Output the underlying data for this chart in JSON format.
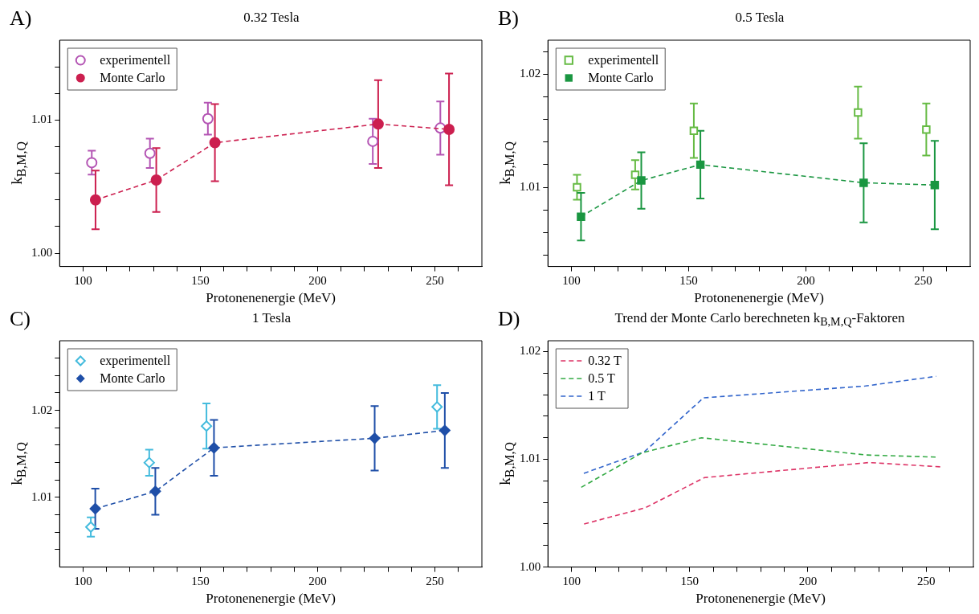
{
  "chart_data": [
    {
      "type": "scatter",
      "title": "0.32 Tesla",
      "xlabel": "Protonenenergie (MeV)",
      "ylabel": "k$_{B,M,Q}$",
      "annotations": [
        "A)"
      ],
      "marker": "circle",
      "line_style": "dashed",
      "legend": "top left",
      "xlim": [
        90,
        270
      ],
      "ylim": [
        0.999,
        1.016
      ],
      "xticks": [
        100,
        {
          "value": 110,
          "label": null
        },
        {
          "value": 120,
          "label": null
        },
        {
          "value": 130,
          "label": null
        },
        {
          "value": 140,
          "label": null
        },
        150,
        {
          "value": 160,
          "label": null
        },
        {
          "value": 170,
          "label": null
        },
        {
          "value": 180,
          "label": null
        },
        {
          "value": 190,
          "label": null
        },
        200,
        {
          "value": 210,
          "label": null
        },
        {
          "value": 220,
          "label": null
        },
        {
          "value": 230,
          "label": null
        },
        {
          "value": 240,
          "label": null
        },
        250,
        {
          "value": 260,
          "label": null
        }
      ],
      "yticks": [
        {
          "value": 1,
          "label": "1.00"
        },
        {
          "value": 1.002,
          "label": null
        },
        {
          "value": 1.004,
          "label": null
        },
        {
          "value": 1.006,
          "label": null
        },
        {
          "value": 1.008,
          "label": null
        },
        {
          "value": 1.01,
          "label": "1.01"
        },
        {
          "value": 1.012,
          "label": null
        },
        {
          "value": 1.014,
          "label": null
        }
      ],
      "series": [
        {
          "name": "experimentell",
          "color": "#b455b4",
          "x": [
            103.7,
            128.5,
            153.2,
            223.5,
            252.3
          ],
          "values": [
            1.0068,
            1.0075,
            1.0101,
            1.0084,
            1.0094
          ],
          "errors": [
            0.0009,
            0.0011,
            0.0012,
            0.0017,
            0.002
          ]
        },
        {
          "name": "Monte Carlo",
          "type": "line",
          "color": "#cc1f4f",
          "x": [
            105.3,
            131.2,
            156.2,
            225.8,
            256
          ],
          "values": [
            1.004,
            1.0055,
            1.0083,
            1.0097,
            1.0093
          ],
          "errors": [
            0.0022,
            0.0024,
            0.0029,
            0.0033,
            0.0042
          ]
        }
      ]
    },
    {
      "type": "scatter",
      "title": "0.5 Tesla",
      "xlabel": "Protonenenergie (MeV)",
      "ylabel": "k$_{B,M,Q}$",
      "annotations": [
        "B)"
      ],
      "marker": "square",
      "line_style": "dashed",
      "legend": "top left",
      "xlim": [
        90,
        270
      ],
      "ylim": [
        1.003,
        1.023
      ],
      "xticks": [
        100,
        {
          "value": 110,
          "label": null
        },
        {
          "value": 120,
          "label": null
        },
        {
          "value": 130,
          "label": null
        },
        {
          "value": 140,
          "label": null
        },
        150,
        {
          "value": 160,
          "label": null
        },
        {
          "value": 170,
          "label": null
        },
        {
          "value": 180,
          "label": null
        },
        {
          "value": 190,
          "label": null
        },
        200,
        {
          "value": 210,
          "label": null
        },
        {
          "value": 220,
          "label": null
        },
        {
          "value": 230,
          "label": null
        },
        {
          "value": 240,
          "label": null
        },
        250,
        {
          "value": 260,
          "label": null
        }
      ],
      "yticks": [
        {
          "value": 1.004,
          "label": null
        },
        {
          "value": 1.006,
          "label": null
        },
        {
          "value": 1.008,
          "label": null
        },
        {
          "value": 1.01,
          "label": "1.01"
        },
        {
          "value": 1.012,
          "label": null
        },
        {
          "value": 1.014,
          "label": null
        },
        {
          "value": 1.016,
          "label": null
        },
        {
          "value": 1.018,
          "label": null
        },
        {
          "value": 1.02,
          "label": "1.02"
        },
        {
          "value": 1.022,
          "label": null
        }
      ],
      "series": [
        {
          "name": "experimentell",
          "color": "#66bb44",
          "x": [
            102.4,
            127.2,
            152.2,
            222.2,
            251.3
          ],
          "values": [
            1.01,
            1.0111,
            1.015,
            1.0166,
            1.0151
          ],
          "errors": [
            0.0011,
            0.0013,
            0.0024,
            0.0023,
            0.0023
          ]
        },
        {
          "name": "Monte Carlo",
          "type": "line",
          "color": "#1a9641",
          "x": [
            104.1,
            129.8,
            155,
            224.6,
            254.9
          ],
          "values": [
            1.0074,
            1.0106,
            1.012,
            1.0104,
            1.0102
          ],
          "errors": [
            0.0021,
            0.0025,
            0.003,
            0.0035,
            0.0039
          ]
        }
      ]
    },
    {
      "type": "scatter",
      "title": "1 Tesla",
      "xlabel": "Protonenenergie (MeV)",
      "ylabel": "k$_{B,M,Q}$",
      "annotations": [
        "C)"
      ],
      "marker": "diamond",
      "line_style": "dashed",
      "legend": "top left",
      "xlim": [
        90,
        270
      ],
      "ylim": [
        1.002,
        1.028
      ],
      "xticks": [
        100,
        {
          "value": 110,
          "label": null
        },
        {
          "value": 120,
          "label": null
        },
        {
          "value": 130,
          "label": null
        },
        {
          "value": 140,
          "label": null
        },
        150,
        {
          "value": 160,
          "label": null
        },
        {
          "value": 170,
          "label": null
        },
        {
          "value": 180,
          "label": null
        },
        {
          "value": 190,
          "label": null
        },
        200,
        {
          "value": 210,
          "label": null
        },
        {
          "value": 220,
          "label": null
        },
        {
          "value": 230,
          "label": null
        },
        {
          "value": 240,
          "label": null
        },
        250,
        {
          "value": 260,
          "label": null
        }
      ],
      "yticks": [
        {
          "value": 1.004,
          "label": null
        },
        {
          "value": 1.006,
          "label": null
        },
        {
          "value": 1.008,
          "label": null
        },
        {
          "value": 1.01,
          "label": "1.01"
        },
        {
          "value": 1.012,
          "label": null
        },
        {
          "value": 1.014,
          "label": null
        },
        {
          "value": 1.016,
          "label": null
        },
        {
          "value": 1.018,
          "label": null
        },
        {
          "value": 1.02,
          "label": "1.02"
        },
        {
          "value": 1.022,
          "label": null
        },
        {
          "value": 1.024,
          "label": null
        },
        {
          "value": 1.026,
          "label": null
        }
      ],
      "series": [
        {
          "name": "experimentell",
          "color": "#44bbdd",
          "x": [
            103.3,
            128.2,
            152.6,
            250.9
          ],
          "values": [
            1.0066,
            1.014,
            1.0182,
            1.0204
          ],
          "errors": [
            0.0011,
            0.0015,
            0.0026,
            0.0025
          ]
        },
        {
          "name": "Monte Carlo",
          "type": "line",
          "color": "#1f4fa8",
          "x": [
            105.2,
            130.8,
            155.8,
            224.3,
            254.2
          ],
          "values": [
            1.0087,
            1.0107,
            1.0157,
            1.0168,
            1.0177
          ],
          "errors": [
            0.0023,
            0.0027,
            0.0032,
            0.0037,
            0.0043
          ]
        }
      ]
    },
    {
      "type": "line",
      "title": "Trend der Monte Carlo berechneten k$_{B,M,Q}$-Faktoren",
      "xlabel": "Protonenenergie (MeV)",
      "ylabel": "k$_{B,M,Q}$",
      "annotations": [
        "D)"
      ],
      "marker": "none",
      "line_style": "dashed",
      "legend": "top left",
      "xlim": [
        90,
        270
      ],
      "ylim": [
        1,
        1.021
      ],
      "xticks": [
        100,
        {
          "value": 110,
          "label": null
        },
        {
          "value": 120,
          "label": null
        },
        {
          "value": 130,
          "label": null
        },
        {
          "value": 140,
          "label": null
        },
        150,
        {
          "value": 160,
          "label": null
        },
        {
          "value": 170,
          "label": null
        },
        {
          "value": 180,
          "label": null
        },
        {
          "value": 190,
          "label": null
        },
        200,
        {
          "value": 210,
          "label": null
        },
        {
          "value": 220,
          "label": null
        },
        {
          "value": 230,
          "label": null
        },
        {
          "value": 240,
          "label": null
        },
        250,
        {
          "value": 260,
          "label": null
        }
      ],
      "yticks": [
        {
          "value": 1,
          "label": "1.00"
        },
        {
          "value": 1.002,
          "label": null
        },
        {
          "value": 1.004,
          "label": null
        },
        {
          "value": 1.006,
          "label": null
        },
        {
          "value": 1.008,
          "label": null
        },
        {
          "value": 1.01,
          "label": "1.01"
        },
        {
          "value": 1.012,
          "label": null
        },
        {
          "value": 1.014,
          "label": null
        },
        {
          "value": 1.016,
          "label": null
        },
        {
          "value": 1.018,
          "label": null
        },
        {
          "value": 1.02,
          "label": "1.02"
        }
      ],
      "series": [
        {
          "name": "0.32 T",
          "color": "#dd3366",
          "x": [
            105.3,
            131.2,
            156.2,
            225.8,
            256
          ],
          "values": [
            1.004,
            1.0055,
            1.0083,
            1.0097,
            1.0093
          ]
        },
        {
          "name": "0.5 T",
          "color": "#33aa44",
          "x": [
            104.1,
            129.8,
            155,
            224.6,
            254.9
          ],
          "values": [
            1.0074,
            1.0106,
            1.012,
            1.0104,
            1.0102
          ]
        },
        {
          "name": "1 T",
          "color": "#3366cc",
          "x": [
            105.2,
            130.8,
            155.8,
            224.3,
            254.2
          ],
          "values": [
            1.0087,
            1.0107,
            1.0157,
            1.0168,
            1.0177
          ]
        }
      ]
    }
  ]
}
